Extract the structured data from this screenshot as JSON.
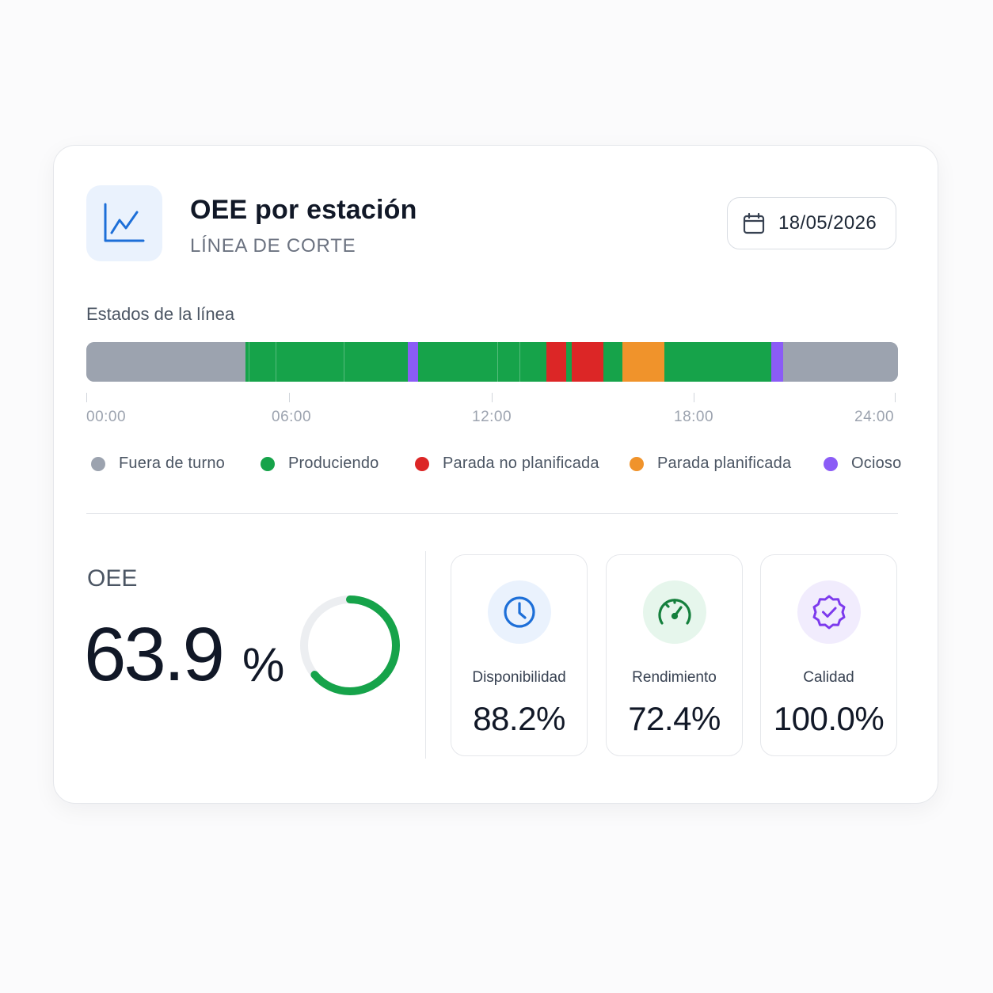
{
  "header": {
    "title": "OEE por estación",
    "subtitle": "LÍNEA DE CORTE",
    "date": "18/05/2026"
  },
  "timeline": {
    "label": "Estados de la línea",
    "axis_labels": [
      "00:00",
      "06:00",
      "12:00",
      "18:00",
      "24:00"
    ],
    "segments": [
      {
        "state": "offshift",
        "start": 0.0,
        "end": 4.7
      },
      {
        "state": "producing",
        "start": 4.7,
        "end": 9.5
      },
      {
        "state": "idle",
        "start": 9.5,
        "end": 9.8
      },
      {
        "state": "producing",
        "start": 9.8,
        "end": 13.6
      },
      {
        "state": "unplanned",
        "start": 13.6,
        "end": 14.2
      },
      {
        "state": "producing",
        "start": 14.2,
        "end": 14.35
      },
      {
        "state": "unplanned",
        "start": 14.35,
        "end": 15.3
      },
      {
        "state": "producing",
        "start": 15.3,
        "end": 15.85
      },
      {
        "state": "planned",
        "start": 15.85,
        "end": 17.1
      },
      {
        "state": "producing",
        "start": 17.1,
        "end": 20.25
      },
      {
        "state": "idle",
        "start": 20.25,
        "end": 20.6
      },
      {
        "state": "offshift",
        "start": 20.6,
        "end": 24.0
      }
    ]
  },
  "legend": [
    {
      "key": "offshift",
      "label": "Fuera de turno",
      "color": "#9ca3af"
    },
    {
      "key": "producing",
      "label": "Produciendo",
      "color": "#16a34a"
    },
    {
      "key": "unplanned",
      "label": "Parada no planificada",
      "color": "#dc2626"
    },
    {
      "key": "planned",
      "label": "Parada planificada",
      "color": "#f0932b"
    },
    {
      "key": "idle",
      "label": "Ocioso",
      "color": "#8b5cf6"
    }
  ],
  "oee": {
    "label": "OEE",
    "value": "63.9",
    "unit": "%",
    "percent": 63.9
  },
  "metrics": [
    {
      "label": "Disponibilidad",
      "value": "88.2%",
      "icon": "clock-icon",
      "accent": "#1d6fd8",
      "bg": "#eaf2fd"
    },
    {
      "label": "Rendimiento",
      "value": "72.4%",
      "icon": "speedometer-icon",
      "accent": "#15803d",
      "bg": "#e6f6ec"
    },
    {
      "label": "Calidad",
      "value": "100.0%",
      "icon": "badge-check-icon",
      "accent": "#7c3aed",
      "bg": "#f1ecfd"
    }
  ]
}
